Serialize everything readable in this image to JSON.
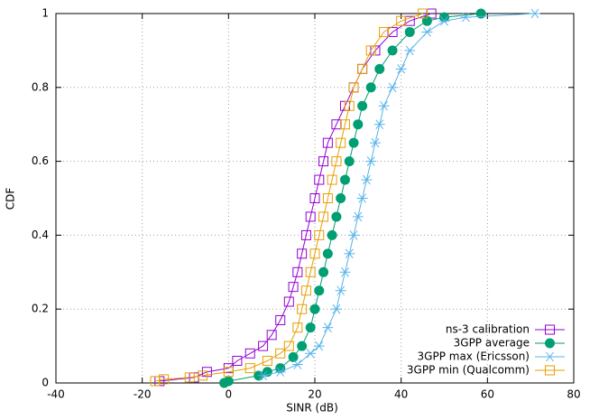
{
  "chart_data": {
    "type": "line",
    "x_label": "SINR (dB)",
    "y_label": "CDF",
    "xlim": [
      -40,
      80
    ],
    "xticks": [
      -40,
      -20,
      0,
      20,
      40,
      60,
      80
    ],
    "ylim": [
      0,
      1
    ],
    "yticks": [
      0,
      0.2,
      0.4,
      0.6,
      0.8,
      1
    ],
    "grid": true,
    "legend": "bottom-right",
    "series": [
      {
        "name": "ns-3 calibration",
        "color": "#9400d3",
        "marker": "open-square",
        "x": [
          -16,
          -8,
          -5,
          0,
          2,
          5,
          8,
          10,
          12,
          14,
          15,
          16,
          17,
          18,
          19,
          20,
          21,
          22,
          23,
          25,
          27,
          29,
          31,
          34,
          38,
          42,
          47
        ],
        "values": [
          0.005,
          0.015,
          0.03,
          0.04,
          0.06,
          0.08,
          0.1,
          0.13,
          0.17,
          0.22,
          0.26,
          0.3,
          0.35,
          0.4,
          0.45,
          0.5,
          0.55,
          0.6,
          0.65,
          0.7,
          0.75,
          0.8,
          0.85,
          0.9,
          0.95,
          0.98,
          1
        ]
      },
      {
        "name": "3GPP average",
        "color": "#009e73",
        "marker": "filled-circle",
        "x": [
          -1,
          0,
          7,
          9,
          12,
          15,
          17,
          19,
          20,
          21,
          22,
          23,
          24,
          25,
          26,
          27,
          28,
          29,
          30,
          31,
          33,
          35,
          38,
          42,
          46,
          50,
          58.5
        ],
        "values": [
          0,
          0.005,
          0.02,
          0.03,
          0.04,
          0.07,
          0.1,
          0.15,
          0.2,
          0.25,
          0.3,
          0.35,
          0.4,
          0.45,
          0.5,
          0.55,
          0.6,
          0.65,
          0.7,
          0.75,
          0.8,
          0.85,
          0.9,
          0.95,
          0.98,
          0.99,
          1
        ]
      },
      {
        "name": "3GPP max (Ericsson)",
        "color": "#56b4e9",
        "marker": "asterisk",
        "x": [
          8,
          12,
          16,
          19,
          21,
          23,
          25,
          26,
          27,
          28,
          29,
          30,
          31,
          32,
          33,
          34,
          35,
          36,
          38,
          40,
          42,
          46,
          50,
          55,
          71
        ],
        "values": [
          0.02,
          0.03,
          0.05,
          0.08,
          0.1,
          0.15,
          0.2,
          0.25,
          0.3,
          0.35,
          0.4,
          0.45,
          0.5,
          0.55,
          0.6,
          0.65,
          0.7,
          0.75,
          0.8,
          0.85,
          0.9,
          0.95,
          0.98,
          0.99,
          1
        ]
      },
      {
        "name": "3GPP min (Qualcomm)",
        "color": "#e69f00",
        "marker": "open-square",
        "x": [
          -17,
          -15,
          -9,
          -6,
          0,
          5,
          9,
          12,
          14,
          16,
          17,
          18,
          19,
          20,
          21,
          22,
          23,
          24,
          25,
          26,
          27,
          28,
          29,
          31,
          33,
          36,
          40,
          45
        ],
        "values": [
          0.005,
          0.01,
          0.015,
          0.02,
          0.03,
          0.04,
          0.06,
          0.08,
          0.1,
          0.15,
          0.2,
          0.25,
          0.3,
          0.35,
          0.4,
          0.45,
          0.5,
          0.55,
          0.6,
          0.65,
          0.7,
          0.75,
          0.8,
          0.85,
          0.9,
          0.95,
          0.98,
          1
        ]
      }
    ]
  }
}
